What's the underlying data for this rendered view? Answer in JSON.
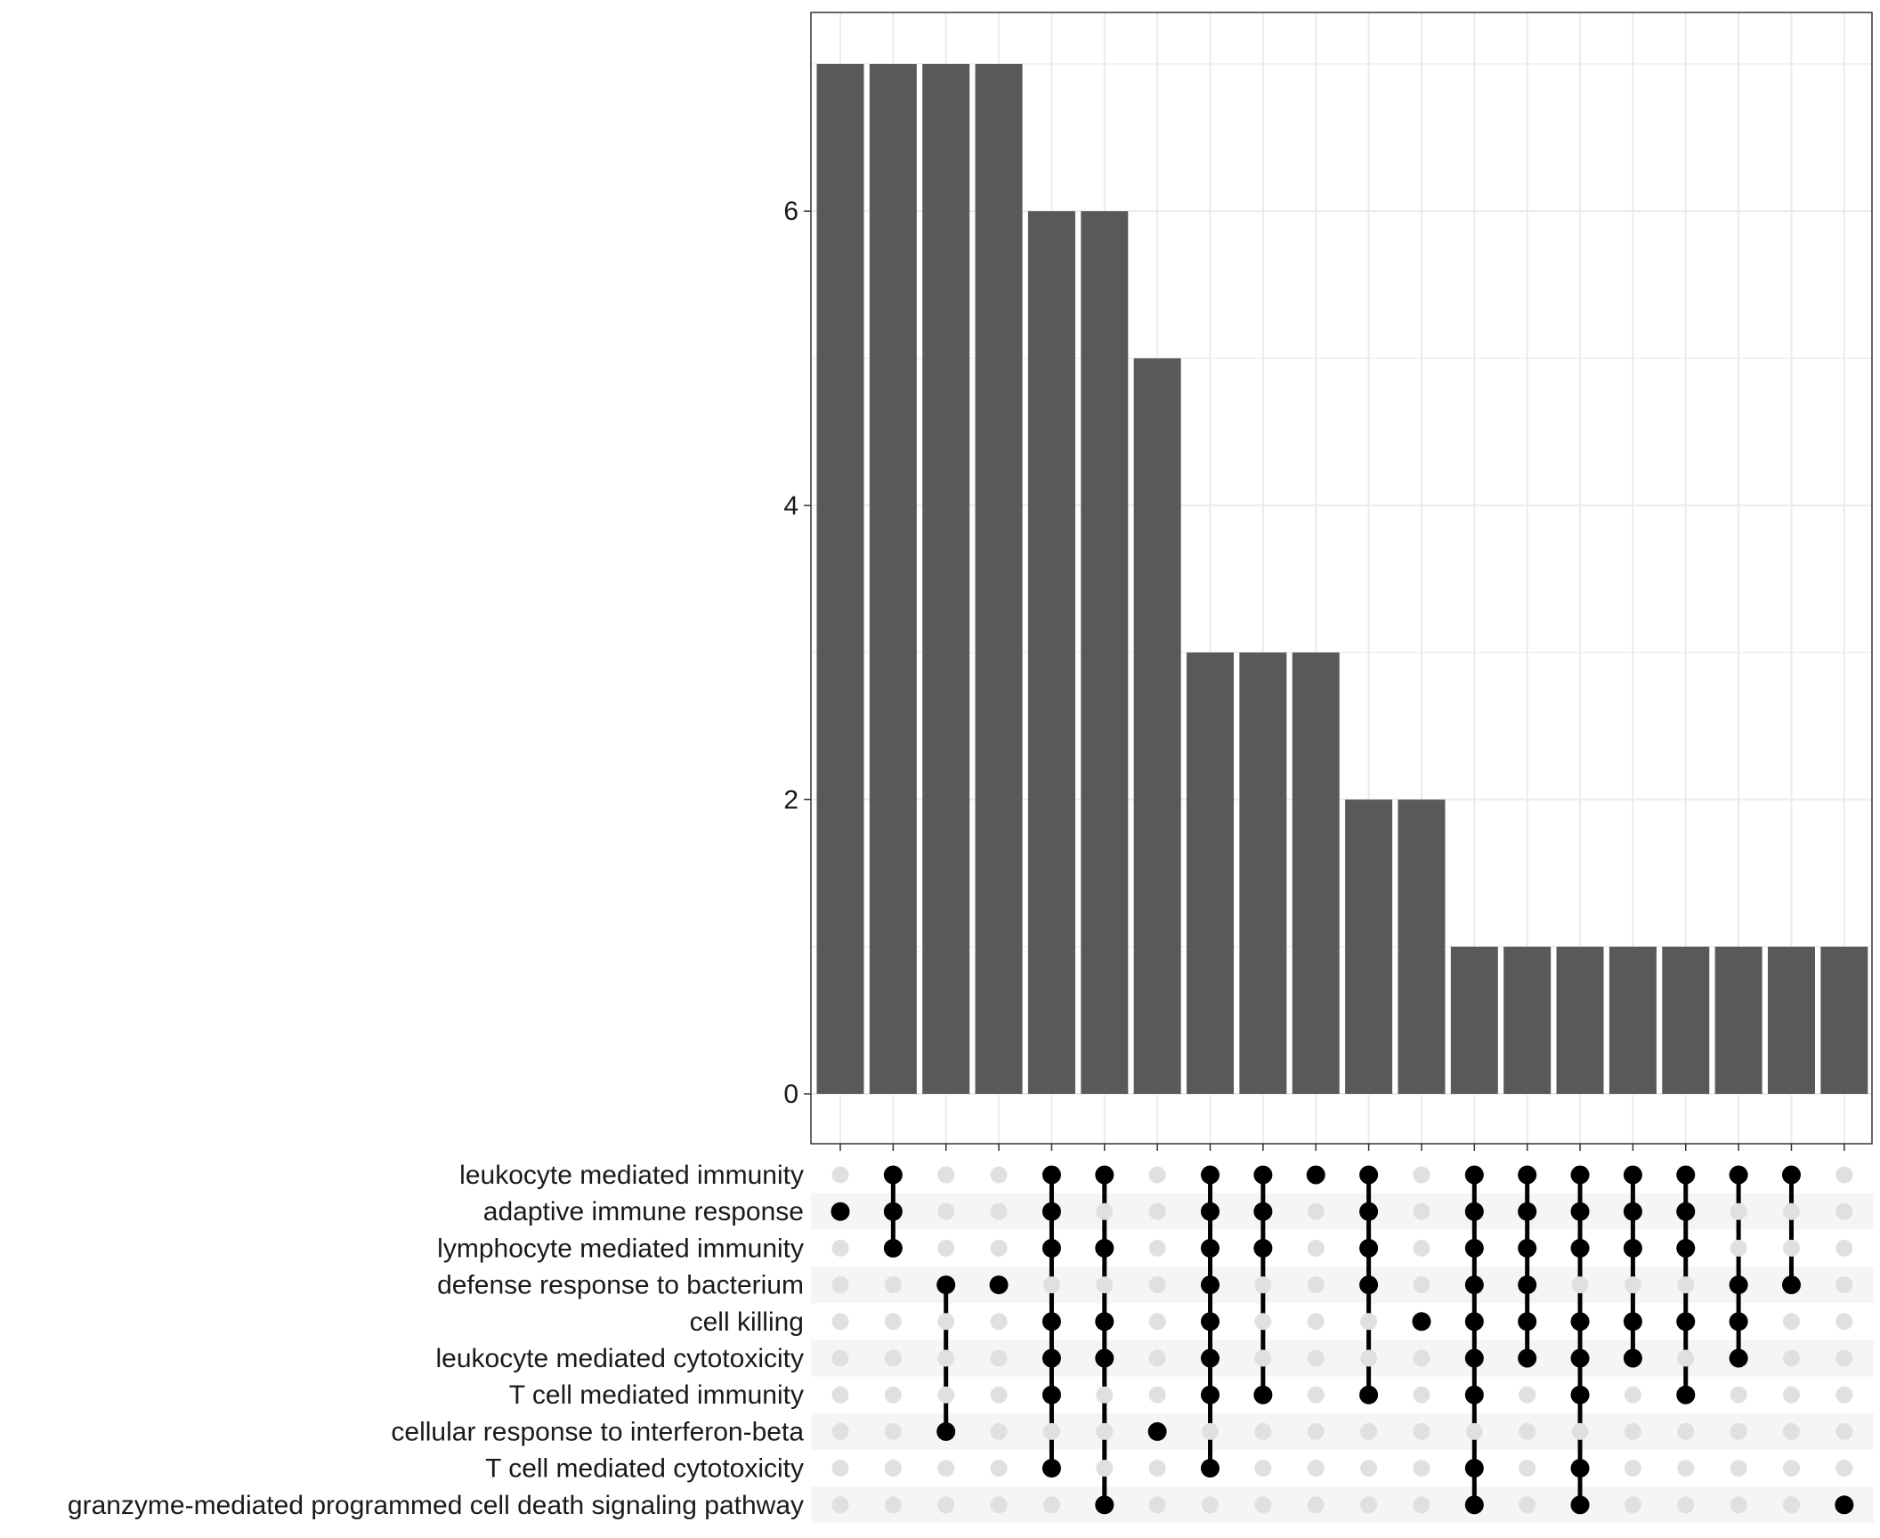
{
  "chart_data": {
    "type": "bar",
    "subtype": "upset",
    "title": "",
    "xlabel": "",
    "ylabel": "",
    "ylim": [
      0,
      7.35
    ],
    "yticks": [
      0,
      2,
      4,
      6
    ],
    "grid": true,
    "colors": {
      "bar": "#595959",
      "dot_active": "#000000",
      "dot_inactive": "#e0e0e0",
      "stripe": "#f5f5f5",
      "grid": "#ebebeb",
      "frame": "#333333"
    },
    "sets": [
      "leukocyte mediated immunity",
      "adaptive immune response",
      "lymphocyte mediated immunity",
      "defense response to bacterium",
      "cell killing",
      "leukocyte mediated cytotoxicity",
      "T cell mediated immunity",
      "cellular response to interferon-beta",
      "T cell mediated cytotoxicity",
      "granzyme-mediated programmed cell death signaling pathway"
    ],
    "intersections": [
      {
        "value": 7,
        "members": [
          1
        ]
      },
      {
        "value": 7,
        "members": [
          0,
          1,
          2
        ]
      },
      {
        "value": 7,
        "members": [
          3,
          7
        ]
      },
      {
        "value": 7,
        "members": [
          3
        ]
      },
      {
        "value": 6,
        "members": [
          0,
          1,
          2,
          4,
          5,
          6,
          8
        ]
      },
      {
        "value": 6,
        "members": [
          0,
          2,
          4,
          5,
          9
        ]
      },
      {
        "value": 5,
        "members": [
          7
        ]
      },
      {
        "value": 3,
        "members": [
          0,
          1,
          2,
          3,
          4,
          5,
          6,
          8
        ]
      },
      {
        "value": 3,
        "members": [
          0,
          1,
          2,
          6
        ]
      },
      {
        "value": 3,
        "members": [
          0
        ]
      },
      {
        "value": 2,
        "members": [
          0,
          1,
          2,
          3,
          6
        ]
      },
      {
        "value": 2,
        "members": [
          4
        ]
      },
      {
        "value": 1,
        "members": [
          0,
          1,
          2,
          3,
          4,
          5,
          6,
          8,
          9
        ]
      },
      {
        "value": 1,
        "members": [
          0,
          1,
          2,
          3,
          4,
          5
        ]
      },
      {
        "value": 1,
        "members": [
          0,
          1,
          2,
          4,
          5,
          6,
          8,
          9
        ]
      },
      {
        "value": 1,
        "members": [
          0,
          1,
          2,
          4,
          5
        ]
      },
      {
        "value": 1,
        "members": [
          0,
          1,
          2,
          4,
          6
        ]
      },
      {
        "value": 1,
        "members": [
          0,
          3,
          4,
          5
        ]
      },
      {
        "value": 1,
        "members": [
          0,
          3
        ]
      },
      {
        "value": 1,
        "members": [
          9
        ]
      }
    ]
  }
}
